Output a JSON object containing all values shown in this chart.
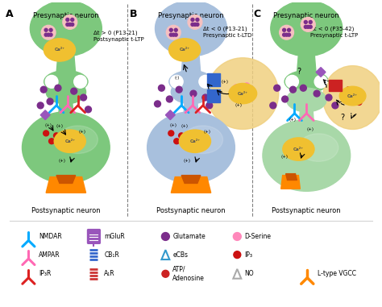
{
  "bg_color": "#ffffff",
  "panel_labels": [
    "A",
    "B",
    "C"
  ],
  "presynaptic_text": "Presynaptic neuron",
  "postsynaptic_text": "Postsynaptic neuron",
  "annotation_A": "Δt > 0 (P13-21)\nPostsynaptic t-LTP",
  "annotation_B": "Δt < 0 (P13-21)\nPresynaptic t-LTD",
  "annotation_C": "Δt < 0 (P35-42)\nPresynaptic t-LTP",
  "green_pre": "#7dc87d",
  "green_post": "#7dc87d",
  "blue_pre": "#a8c0dd",
  "blue_post": "#a8c0dd",
  "astro_color": "#f0d080",
  "ca_color": "#f0c030",
  "ca_text_color": "#555555",
  "purple_dot": "#7b2d8b",
  "red_dot": "#cc1111",
  "pink_dot": "#ff69b4",
  "nmdar_color": "#00aaff",
  "ampar_color": "#ff69b4",
  "ip3r_color": "#dd2222",
  "mglur_color": "#9955bb",
  "cb1r_color": "#3366cc",
  "a1r_color": "#cc3333",
  "vgcc_color": "#ff8800",
  "ecbs_color": "#3399cc",
  "no_color": "#aaaaaa",
  "atp_color": "#cc2222",
  "dserine_color": "#ff88bb"
}
